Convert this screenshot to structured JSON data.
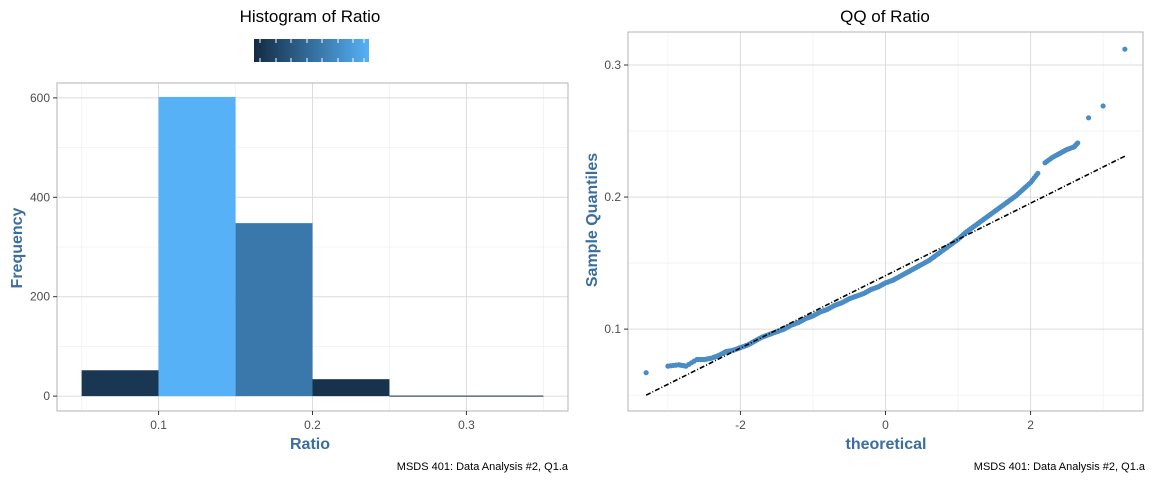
{
  "chart_data": [
    {
      "type": "bar",
      "title": "Histogram of Ratio",
      "xlabel": "Ratio",
      "ylabel": "Frequency",
      "caption": "MSDS 401: Data Analysis #2, Q1.a",
      "bin_width": 0.05,
      "bins": [
        {
          "start": 0.05,
          "end": 0.1,
          "count": 52
        },
        {
          "start": 0.1,
          "end": 0.15,
          "count": 602
        },
        {
          "start": 0.15,
          "end": 0.2,
          "count": 348
        },
        {
          "start": 0.2,
          "end": 0.25,
          "count": 34
        },
        {
          "start": 0.25,
          "end": 0.3,
          "count": 1
        },
        {
          "start": 0.3,
          "end": 0.35,
          "count": 1
        }
      ],
      "xlim": [
        0.034,
        0.366
      ],
      "ylim": [
        -30,
        630
      ],
      "x_ticks": [
        0.1,
        0.2,
        0.3
      ],
      "x_tick_labels": [
        "0.1",
        "0.2",
        "0.3"
      ],
      "y_ticks": [
        0,
        200,
        400,
        600
      ],
      "y_tick_labels": [
        "0",
        "200",
        "400",
        "600"
      ],
      "fill_gradient": {
        "low": "#132b43",
        "high": "#56b1f7"
      },
      "legend": "top, color bar without labels",
      "grid": true
    },
    {
      "type": "scatter",
      "title": "QQ of Ratio",
      "xlabel": "theoretical",
      "ylabel": "Sample Quantiles",
      "caption": "MSDS 401: Data Analysis #2, Q1.a",
      "xlim": [
        -3.55,
        3.55
      ],
      "ylim": [
        0.038,
        0.325
      ],
      "x_ticks": [
        -2,
        0,
        2
      ],
      "x_tick_labels": [
        "-2",
        "0",
        "2"
      ],
      "y_ticks": [
        0.1,
        0.2,
        0.3
      ],
      "y_tick_labels": [
        "0.1",
        "0.2",
        "0.3"
      ],
      "point_color": "#4a8cc4",
      "reference_line": {
        "x": [
          -3.3,
          3.3
        ],
        "y": [
          0.05,
          0.231
        ],
        "style": "dashed",
        "color": "#000000"
      },
      "points": [
        {
          "x": -3.3,
          "y": 0.067
        },
        {
          "x": -3.0,
          "y": 0.072
        },
        {
          "x": -2.85,
          "y": 0.073
        },
        {
          "x": -2.75,
          "y": 0.072
        },
        {
          "x": -2.6,
          "y": 0.077
        },
        {
          "x": -2.5,
          "y": 0.077
        },
        {
          "x": -2.4,
          "y": 0.078
        },
        {
          "x": -2.3,
          "y": 0.08
        },
        {
          "x": -2.2,
          "y": 0.083
        },
        {
          "x": -2.1,
          "y": 0.084
        },
        {
          "x": -2.0,
          "y": 0.086
        },
        {
          "x": -1.9,
          "y": 0.088
        },
        {
          "x": -1.8,
          "y": 0.091
        },
        {
          "x": -1.7,
          "y": 0.094
        },
        {
          "x": -1.6,
          "y": 0.096
        },
        {
          "x": -1.5,
          "y": 0.098
        },
        {
          "x": -1.4,
          "y": 0.1
        },
        {
          "x": -1.3,
          "y": 0.103
        },
        {
          "x": -1.2,
          "y": 0.105
        },
        {
          "x": -1.1,
          "y": 0.108
        },
        {
          "x": -1.0,
          "y": 0.11
        },
        {
          "x": -0.9,
          "y": 0.113
        },
        {
          "x": -0.8,
          "y": 0.115
        },
        {
          "x": -0.7,
          "y": 0.118
        },
        {
          "x": -0.6,
          "y": 0.12
        },
        {
          "x": -0.5,
          "y": 0.123
        },
        {
          "x": -0.4,
          "y": 0.125
        },
        {
          "x": -0.3,
          "y": 0.127
        },
        {
          "x": -0.2,
          "y": 0.13
        },
        {
          "x": -0.1,
          "y": 0.132
        },
        {
          "x": 0.0,
          "y": 0.135
        },
        {
          "x": 0.1,
          "y": 0.137
        },
        {
          "x": 0.2,
          "y": 0.14
        },
        {
          "x": 0.3,
          "y": 0.143
        },
        {
          "x": 0.4,
          "y": 0.146
        },
        {
          "x": 0.5,
          "y": 0.149
        },
        {
          "x": 0.6,
          "y": 0.152
        },
        {
          "x": 0.7,
          "y": 0.156
        },
        {
          "x": 0.8,
          "y": 0.16
        },
        {
          "x": 0.9,
          "y": 0.164
        },
        {
          "x": 1.0,
          "y": 0.168
        },
        {
          "x": 1.1,
          "y": 0.173
        },
        {
          "x": 1.2,
          "y": 0.177
        },
        {
          "x": 1.3,
          "y": 0.181
        },
        {
          "x": 1.4,
          "y": 0.185
        },
        {
          "x": 1.5,
          "y": 0.189
        },
        {
          "x": 1.6,
          "y": 0.193
        },
        {
          "x": 1.7,
          "y": 0.197
        },
        {
          "x": 1.8,
          "y": 0.201
        },
        {
          "x": 1.9,
          "y": 0.206
        },
        {
          "x": 2.0,
          "y": 0.211
        },
        {
          "x": 2.1,
          "y": 0.218
        },
        {
          "x": 2.2,
          "y": 0.226
        },
        {
          "x": 2.3,
          "y": 0.23
        },
        {
          "x": 2.4,
          "y": 0.233
        },
        {
          "x": 2.5,
          "y": 0.236
        },
        {
          "x": 2.6,
          "y": 0.238
        },
        {
          "x": 2.65,
          "y": 0.241
        },
        {
          "x": 2.8,
          "y": 0.26
        },
        {
          "x": 3.0,
          "y": 0.269
        },
        {
          "x": 3.3,
          "y": 0.312
        }
      ],
      "grid": true
    }
  ]
}
